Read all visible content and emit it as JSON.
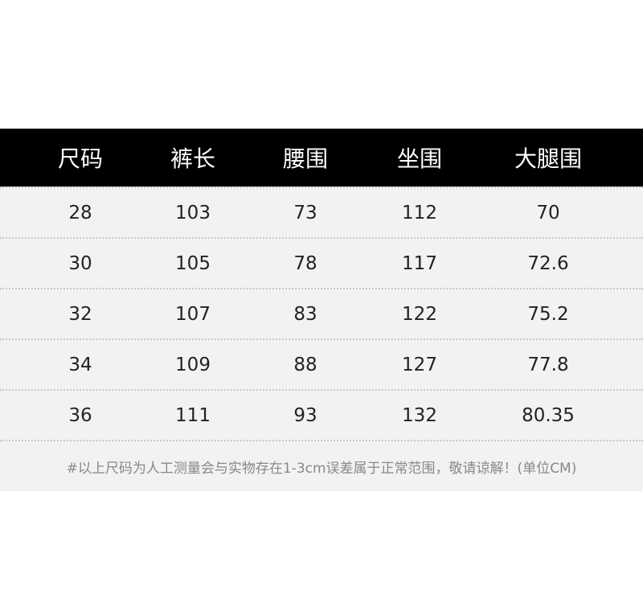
{
  "headers": [
    "尺码",
    "裤长",
    "腰围",
    "坐围",
    "大腿围"
  ],
  "rows": [
    [
      "28",
      "103",
      "73",
      "112",
      "70"
    ],
    [
      "30",
      "105",
      "78",
      "117",
      "72.6"
    ],
    [
      "32",
      "107",
      "83",
      "122",
      "75.2"
    ],
    [
      "34",
      "109",
      "88",
      "127",
      "77.8"
    ],
    [
      "36",
      "111",
      "93",
      "132",
      "80.35"
    ]
  ],
  "note": "#以上尺码为人工测量会与实物存在1-3cm误差属于正常范围，敬请谅解！(单位CM)"
}
